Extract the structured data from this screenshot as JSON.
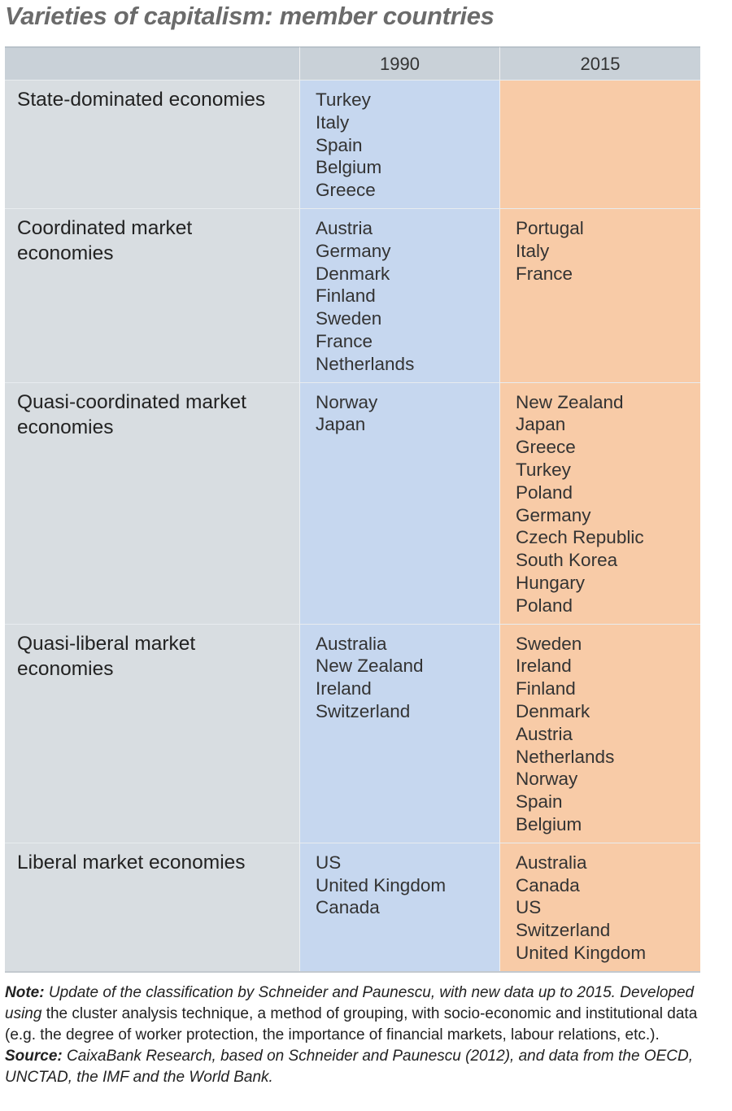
{
  "title": "Varieties of capitalism: member countries",
  "table": {
    "columns": [
      "1990",
      "2015"
    ],
    "rows": [
      {
        "label": "State-dominated economies",
        "cells": [
          [
            "Turkey",
            "Italy",
            "Spain",
            "Belgium",
            "Greece"
          ],
          []
        ]
      },
      {
        "label": "Coordinated market economies",
        "cells": [
          [
            "Austria",
            "Germany",
            "Denmark",
            "Finland",
            "Sweden",
            "France",
            "Netherlands"
          ],
          [
            "Portugal",
            "Italy",
            "France"
          ]
        ]
      },
      {
        "label": "Quasi-coordinated market economies",
        "cells": [
          [
            "Norway",
            "Japan"
          ],
          [
            "New Zealand",
            "Japan",
            "Greece",
            "Turkey",
            "Poland",
            "Germany",
            "Czech Republic",
            "South Korea",
            "Hungary",
            "Poland"
          ]
        ]
      },
      {
        "label": "Quasi-liberal market economies",
        "cells": [
          [
            "Australia",
            "New Zealand",
            "Ireland",
            "Switzerland"
          ],
          [
            "Sweden",
            "Ireland",
            "Finland",
            "Denmark",
            "Austria",
            "Netherlands",
            "Norway",
            "Spain",
            "Belgium"
          ]
        ]
      },
      {
        "label": "Liberal market economies",
        "cells": [
          [
            "US",
            "United Kingdom",
            "Canada"
          ],
          [
            "Australia",
            "Canada",
            "US",
            "Switzerland",
            "United Kingdom"
          ]
        ]
      }
    ]
  },
  "note": {
    "label": "Note:",
    "italic_text": "Update of the classification by Schneider and Paunescu, with new data up to 2015. Developed using",
    "text": "the cluster analysis technique, a method of grouping, with socio-economic and institutional data (e.g. the degree of worker protection, the importance of financial markets, labour relations, etc.)."
  },
  "source": {
    "label": "Source:",
    "text": "CaixaBank Research, based on Schneider and Paunescu (2012), and data from the OECD, UNCTAD, the IMF and the World Bank."
  }
}
